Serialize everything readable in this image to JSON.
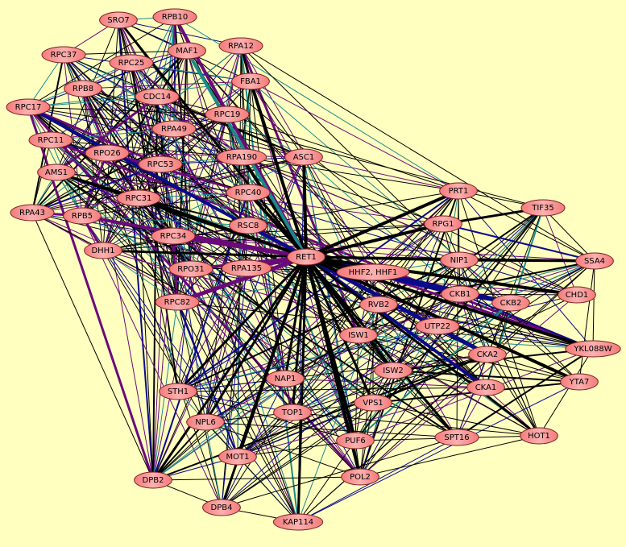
{
  "colors": {
    "background": "#ffffc0",
    "node_fill": "#fa9a9a",
    "node_stroke": "#7a2020",
    "edge_black": "#000000",
    "edge_purple": "#6a0a7a",
    "edge_blue": "#0a0a8a",
    "edge_teal": "#1a8a8a",
    "edge_green": "#2a8a1a"
  },
  "nodes": [
    {
      "id": "SRO7",
      "label": "SRO7",
      "group": "pol"
    },
    {
      "id": "RPB10",
      "label": "RPB10",
      "group": "pol"
    },
    {
      "id": "MAF1",
      "label": "MAF1",
      "group": "pol"
    },
    {
      "id": "RPA12",
      "label": "RPA12",
      "group": "pol"
    },
    {
      "id": "RPC37",
      "label": "RPC37",
      "group": "pol"
    },
    {
      "id": "RPC25",
      "label": "RPC25",
      "group": "pol"
    },
    {
      "id": "FBA1",
      "label": "FBA1",
      "group": "pol"
    },
    {
      "id": "RPB8",
      "label": "RPB8",
      "group": "pol"
    },
    {
      "id": "CDC14",
      "label": "CDC14",
      "group": "pol"
    },
    {
      "id": "RPC19",
      "label": "RPC19",
      "group": "pol"
    },
    {
      "id": "RPC17",
      "label": "RPC17",
      "group": "pol"
    },
    {
      "id": "RPA49",
      "label": "RPA49",
      "group": "pol"
    },
    {
      "id": "RPC11",
      "label": "RPC11",
      "group": "pol"
    },
    {
      "id": "RPO26",
      "label": "RPO26",
      "group": "pol"
    },
    {
      "id": "RPC53",
      "label": "RPC53",
      "group": "pol"
    },
    {
      "id": "RPA190",
      "label": "RPA190",
      "group": "pol"
    },
    {
      "id": "ASC1",
      "label": "ASC1",
      "group": "pol"
    },
    {
      "id": "AMS1",
      "label": "AMS1",
      "group": "pol"
    },
    {
      "id": "RPC31",
      "label": "RPC31",
      "group": "pol"
    },
    {
      "id": "RPC40",
      "label": "RPC40",
      "group": "pol"
    },
    {
      "id": "RPA43",
      "label": "RPA43",
      "group": "pol"
    },
    {
      "id": "RPB5",
      "label": "RPB5",
      "group": "pol"
    },
    {
      "id": "RSC8",
      "label": "RSC8",
      "group": "pol"
    },
    {
      "id": "RPC34",
      "label": "RPC34",
      "group": "pol"
    },
    {
      "id": "DHH1",
      "label": "DHH1",
      "group": "pol"
    },
    {
      "id": "RET1",
      "label": "RET1",
      "group": "hub"
    },
    {
      "id": "RPO31",
      "label": "RPO31",
      "group": "pol"
    },
    {
      "id": "RPA135",
      "label": "RPA135",
      "group": "pol"
    },
    {
      "id": "RPC82",
      "label": "RPC82",
      "group": "pol"
    },
    {
      "id": "PRT1",
      "label": "PRT1",
      "group": "ck"
    },
    {
      "id": "TIF35",
      "label": "TIF35",
      "group": "ck"
    },
    {
      "id": "RPG1",
      "label": "RPG1",
      "group": "ck"
    },
    {
      "id": "NIP1",
      "label": "NIP1",
      "group": "ck"
    },
    {
      "id": "SSA4",
      "label": "SSA4",
      "group": "ck"
    },
    {
      "id": "HHF",
      "label": "HHF2, HHF1",
      "group": "ck"
    },
    {
      "id": "CKB1",
      "label": "CKB1",
      "group": "ck"
    },
    {
      "id": "CHD1",
      "label": "CHD1",
      "group": "ck"
    },
    {
      "id": "CKB2",
      "label": "CKB2",
      "group": "ck"
    },
    {
      "id": "RVB2",
      "label": "RVB2",
      "group": "ck"
    },
    {
      "id": "UTP22",
      "label": "UTP22",
      "group": "ck"
    },
    {
      "id": "ISW1",
      "label": "ISW1",
      "group": "ck"
    },
    {
      "id": "YKL088W",
      "label": "YKL088W",
      "group": "ck"
    },
    {
      "id": "CKA2",
      "label": "CKA2",
      "group": "ck"
    },
    {
      "id": "ISW2",
      "label": "ISW2",
      "group": "ck"
    },
    {
      "id": "YTA7",
      "label": "YTA7",
      "group": "ck"
    },
    {
      "id": "CKA1",
      "label": "CKA1",
      "group": "ck"
    },
    {
      "id": "VPS1",
      "label": "VPS1",
      "group": "ck"
    },
    {
      "id": "HOT1",
      "label": "HOT1",
      "group": "ck"
    },
    {
      "id": "SPT16",
      "label": "SPT16",
      "group": "ck"
    },
    {
      "id": "PUF6",
      "label": "PUF6",
      "group": "low"
    },
    {
      "id": "NAP1",
      "label": "NAP1",
      "group": "low"
    },
    {
      "id": "STH1",
      "label": "STH1",
      "group": "low"
    },
    {
      "id": "TOP1",
      "label": "TOP1",
      "group": "low"
    },
    {
      "id": "NPL6",
      "label": "NPL6",
      "group": "low"
    },
    {
      "id": "MOT1",
      "label": "MOT1",
      "group": "low"
    },
    {
      "id": "DPB2",
      "label": "DPB2",
      "group": "low"
    },
    {
      "id": "POL2",
      "label": "POL2",
      "group": "low"
    },
    {
      "id": "DPB4",
      "label": "DPB4",
      "group": "low"
    },
    {
      "id": "KAP114",
      "label": "KAP114",
      "group": "low"
    }
  ],
  "heavy_edges": [
    [
      "RET1",
      "RPA190",
      "black",
      4
    ],
    [
      "RET1",
      "FBA1",
      "black",
      4
    ],
    [
      "RET1",
      "ASC1",
      "black",
      4
    ],
    [
      "RET1",
      "RPC40",
      "black",
      4
    ],
    [
      "RET1",
      "RSC8",
      "purple",
      5
    ],
    [
      "RET1",
      "RPC34",
      "purple",
      5
    ],
    [
      "RET1",
      "RPC82",
      "purple",
      5
    ],
    [
      "RET1",
      "RPB5",
      "purple",
      4
    ],
    [
      "RET1",
      "RPC31",
      "black",
      4
    ],
    [
      "RET1",
      "DHH1",
      "black",
      3
    ],
    [
      "RET1",
      "AMS1",
      "black",
      3
    ],
    [
      "RET1",
      "RPC17",
      "blue",
      4
    ],
    [
      "RET1",
      "RPB10",
      "purple",
      4
    ],
    [
      "RET1",
      "MAF1",
      "teal",
      4
    ],
    [
      "RET1",
      "SRO7",
      "black",
      3
    ],
    [
      "RET1",
      "RPO31",
      "purple",
      4
    ],
    [
      "RET1",
      "RPA135",
      "purple",
      4
    ],
    [
      "RET1",
      "PRT1",
      "black",
      4
    ],
    [
      "RET1",
      "RPG1",
      "black",
      4
    ],
    [
      "RET1",
      "NIP1",
      "black",
      3
    ],
    [
      "RET1",
      "SSA4",
      "black",
      3
    ],
    [
      "RET1",
      "CKB1",
      "blue",
      6
    ],
    [
      "RET1",
      "CKB2",
      "blue",
      5
    ],
    [
      "RET1",
      "CKA2",
      "blue",
      5
    ],
    [
      "RET1",
      "CKA1",
      "blue",
      4
    ],
    [
      "RET1",
      "HHF",
      "black",
      3
    ],
    [
      "RET1",
      "CHD1",
      "black",
      4
    ],
    [
      "RET1",
      "YKL088W",
      "black",
      4
    ],
    [
      "RET1",
      "YTA7",
      "black",
      4
    ],
    [
      "RET1",
      "HOT1",
      "black",
      3
    ],
    [
      "RET1",
      "SPT16",
      "black",
      3
    ],
    [
      "RET1",
      "ISW2",
      "black",
      4
    ],
    [
      "RET1",
      "VPS1",
      "black",
      3
    ],
    [
      "RET1",
      "PUF6",
      "black",
      4
    ],
    [
      "RET1",
      "POL2",
      "black",
      4
    ],
    [
      "RET1",
      "MOT1",
      "black",
      4
    ],
    [
      "RET1",
      "DPB2",
      "black",
      3
    ],
    [
      "RET1",
      "KAP114",
      "black",
      3
    ],
    [
      "RET1",
      "DPB4",
      "black",
      3
    ],
    [
      "RET1",
      "STH1",
      "black",
      3
    ],
    [
      "RET1",
      "NPL6",
      "black",
      3
    ],
    [
      "RET1",
      "TOP1",
      "black",
      3
    ],
    [
      "RET1",
      "NAP1",
      "black",
      3
    ],
    [
      "RET1",
      "ISW1",
      "black",
      3
    ],
    [
      "RPG1",
      "TIF35",
      "black",
      3
    ],
    [
      "NIP1",
      "SSA4",
      "black",
      3
    ],
    [
      "CKB1",
      "CKB2",
      "blue",
      4
    ],
    [
      "FBA1",
      "RPA12",
      "black",
      3
    ],
    [
      "AMS1",
      "RPC31",
      "black",
      3
    ],
    [
      "RPA43",
      "RPB5",
      "purple",
      3
    ],
    [
      "DHH1",
      "RPB5",
      "purple",
      3
    ]
  ]
}
